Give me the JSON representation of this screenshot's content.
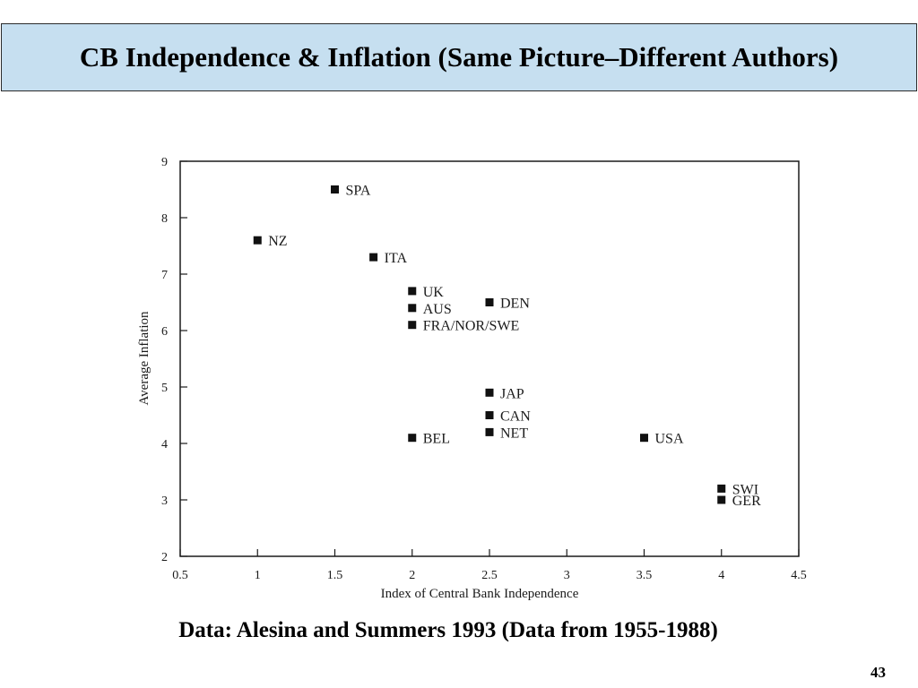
{
  "slide": {
    "title": "CB Independence & Inflation (Same Picture–Different Authors)",
    "caption": "Data:  Alesina and Summers 1993  (Data from 1955-1988)",
    "page_number": "43"
  },
  "chart_data": {
    "type": "scatter",
    "xlabel": "Index of Central Bank Independence",
    "ylabel": "Average Inflation",
    "xlim": [
      0.5,
      4.5
    ],
    "ylim": [
      2,
      9
    ],
    "xticks": [
      "0.5",
      "1",
      "1.5",
      "2",
      "2.5",
      "3",
      "3.5",
      "4",
      "4.5"
    ],
    "yticks": [
      "2",
      "3",
      "4",
      "5",
      "6",
      "7",
      "8",
      "9"
    ],
    "grid": false,
    "points": [
      {
        "label": "SPA",
        "x": 1.5,
        "y": 8.5
      },
      {
        "label": "NZ",
        "x": 1.0,
        "y": 7.6
      },
      {
        "label": "ITA",
        "x": 1.75,
        "y": 7.3
      },
      {
        "label": "UK",
        "x": 2.0,
        "y": 6.7
      },
      {
        "label": "AUS",
        "x": 2.0,
        "y": 6.4
      },
      {
        "label": "FRA/NOR/SWE",
        "x": 2.0,
        "y": 6.1
      },
      {
        "label": "DEN",
        "x": 2.5,
        "y": 6.5
      },
      {
        "label": "JAP",
        "x": 2.5,
        "y": 4.9
      },
      {
        "label": "CAN",
        "x": 2.5,
        "y": 4.5
      },
      {
        "label": "NET",
        "x": 2.5,
        "y": 4.2
      },
      {
        "label": "BEL",
        "x": 2.0,
        "y": 4.1
      },
      {
        "label": "USA",
        "x": 3.5,
        "y": 4.1
      },
      {
        "label": "SWI",
        "x": 4.0,
        "y": 3.2
      },
      {
        "label": "GER",
        "x": 4.0,
        "y": 3.0
      }
    ]
  }
}
